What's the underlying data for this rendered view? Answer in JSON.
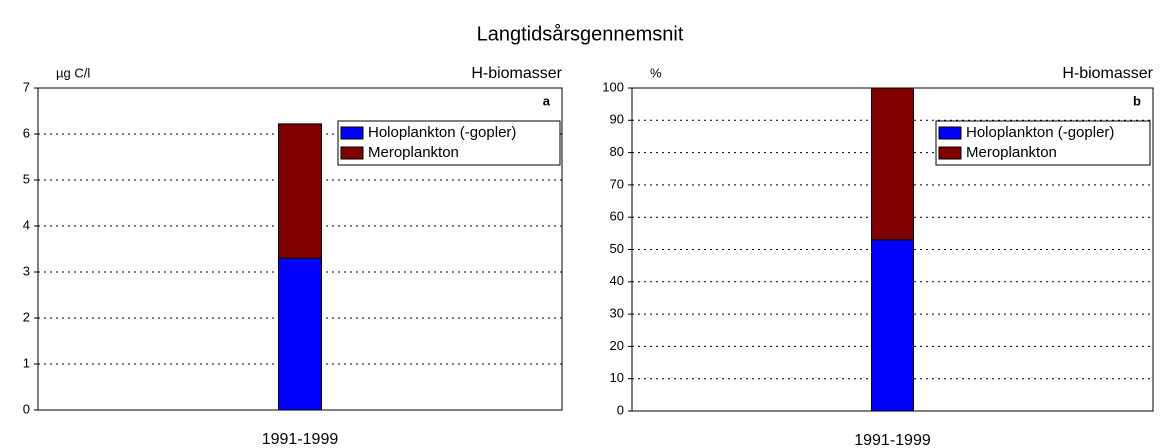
{
  "title": "Langtidsårsgennemsnit",
  "chart_data": [
    {
      "type": "stacked-bar",
      "ylabel": "µg C/l",
      "subtitle": "H-biomasser",
      "panel": "a",
      "categories": [
        "1991-1999"
      ],
      "series": [
        {
          "name": "Holoplankton (-gopler)",
          "color": "#0000ff",
          "values": [
            3.3
          ]
        },
        {
          "name": "Meroplankton",
          "color": "#800000",
          "values": [
            2.92
          ]
        }
      ],
      "ylim": [
        0,
        7
      ],
      "yticks": [
        0,
        1,
        2,
        3,
        4,
        5,
        6,
        7
      ],
      "grid": true,
      "legend": "top-right"
    },
    {
      "type": "stacked-bar",
      "ylabel": "%",
      "subtitle": "H-biomasser",
      "panel": "b",
      "categories": [
        "1991-1999"
      ],
      "series": [
        {
          "name": "Holoplankton (-gopler)",
          "color": "#0000ff",
          "values": [
            53
          ]
        },
        {
          "name": "Meroplankton",
          "color": "#800000",
          "values": [
            47
          ]
        }
      ],
      "ylim": [
        0,
        100
      ],
      "yticks": [
        0,
        10,
        20,
        30,
        40,
        50,
        60,
        70,
        80,
        90,
        100
      ],
      "grid": true,
      "legend": "top-right"
    }
  ]
}
